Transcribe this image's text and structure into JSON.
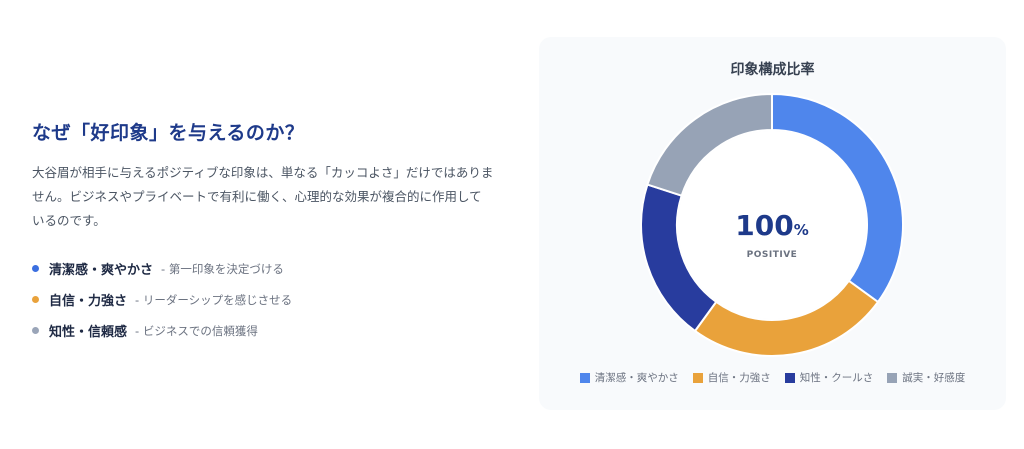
{
  "intro": {
    "heading": "なぜ「好印象」を与えるのか？",
    "description": "大谷眉が相手に与えるポジティブな印象は、単なる「カッコよさ」だけではありません。ビジネスやプライベートで有利に働く、心理的な効果が複合的に作用しているのです。",
    "bullets": [
      {
        "label": "清潔感・爽やかさ",
        "sub": "- 第一印象を決定づける",
        "color": "#3b6fe0"
      },
      {
        "label": "自信・力強さ",
        "sub": "- リーダーシップを感じさせる",
        "color": "#e9a23b"
      },
      {
        "label": "知性・信頼感",
        "sub": "- ビジネスでの信頼獲得",
        "color": "#9aa5b8"
      }
    ]
  },
  "chart_data": {
    "type": "pie",
    "title": "印象構成比率",
    "categories": [
      "清潔感・爽やかさ",
      "自信・力強さ",
      "知性・クールさ",
      "誠実・好感度"
    ],
    "values": [
      35,
      25,
      20,
      20
    ],
    "colors": [
      "#4f86ec",
      "#e9a23b",
      "#283c9e",
      "#97a3b6"
    ],
    "center_value": "100",
    "center_unit": "%",
    "center_label": "POSITIVE",
    "legend_position": "bottom"
  }
}
